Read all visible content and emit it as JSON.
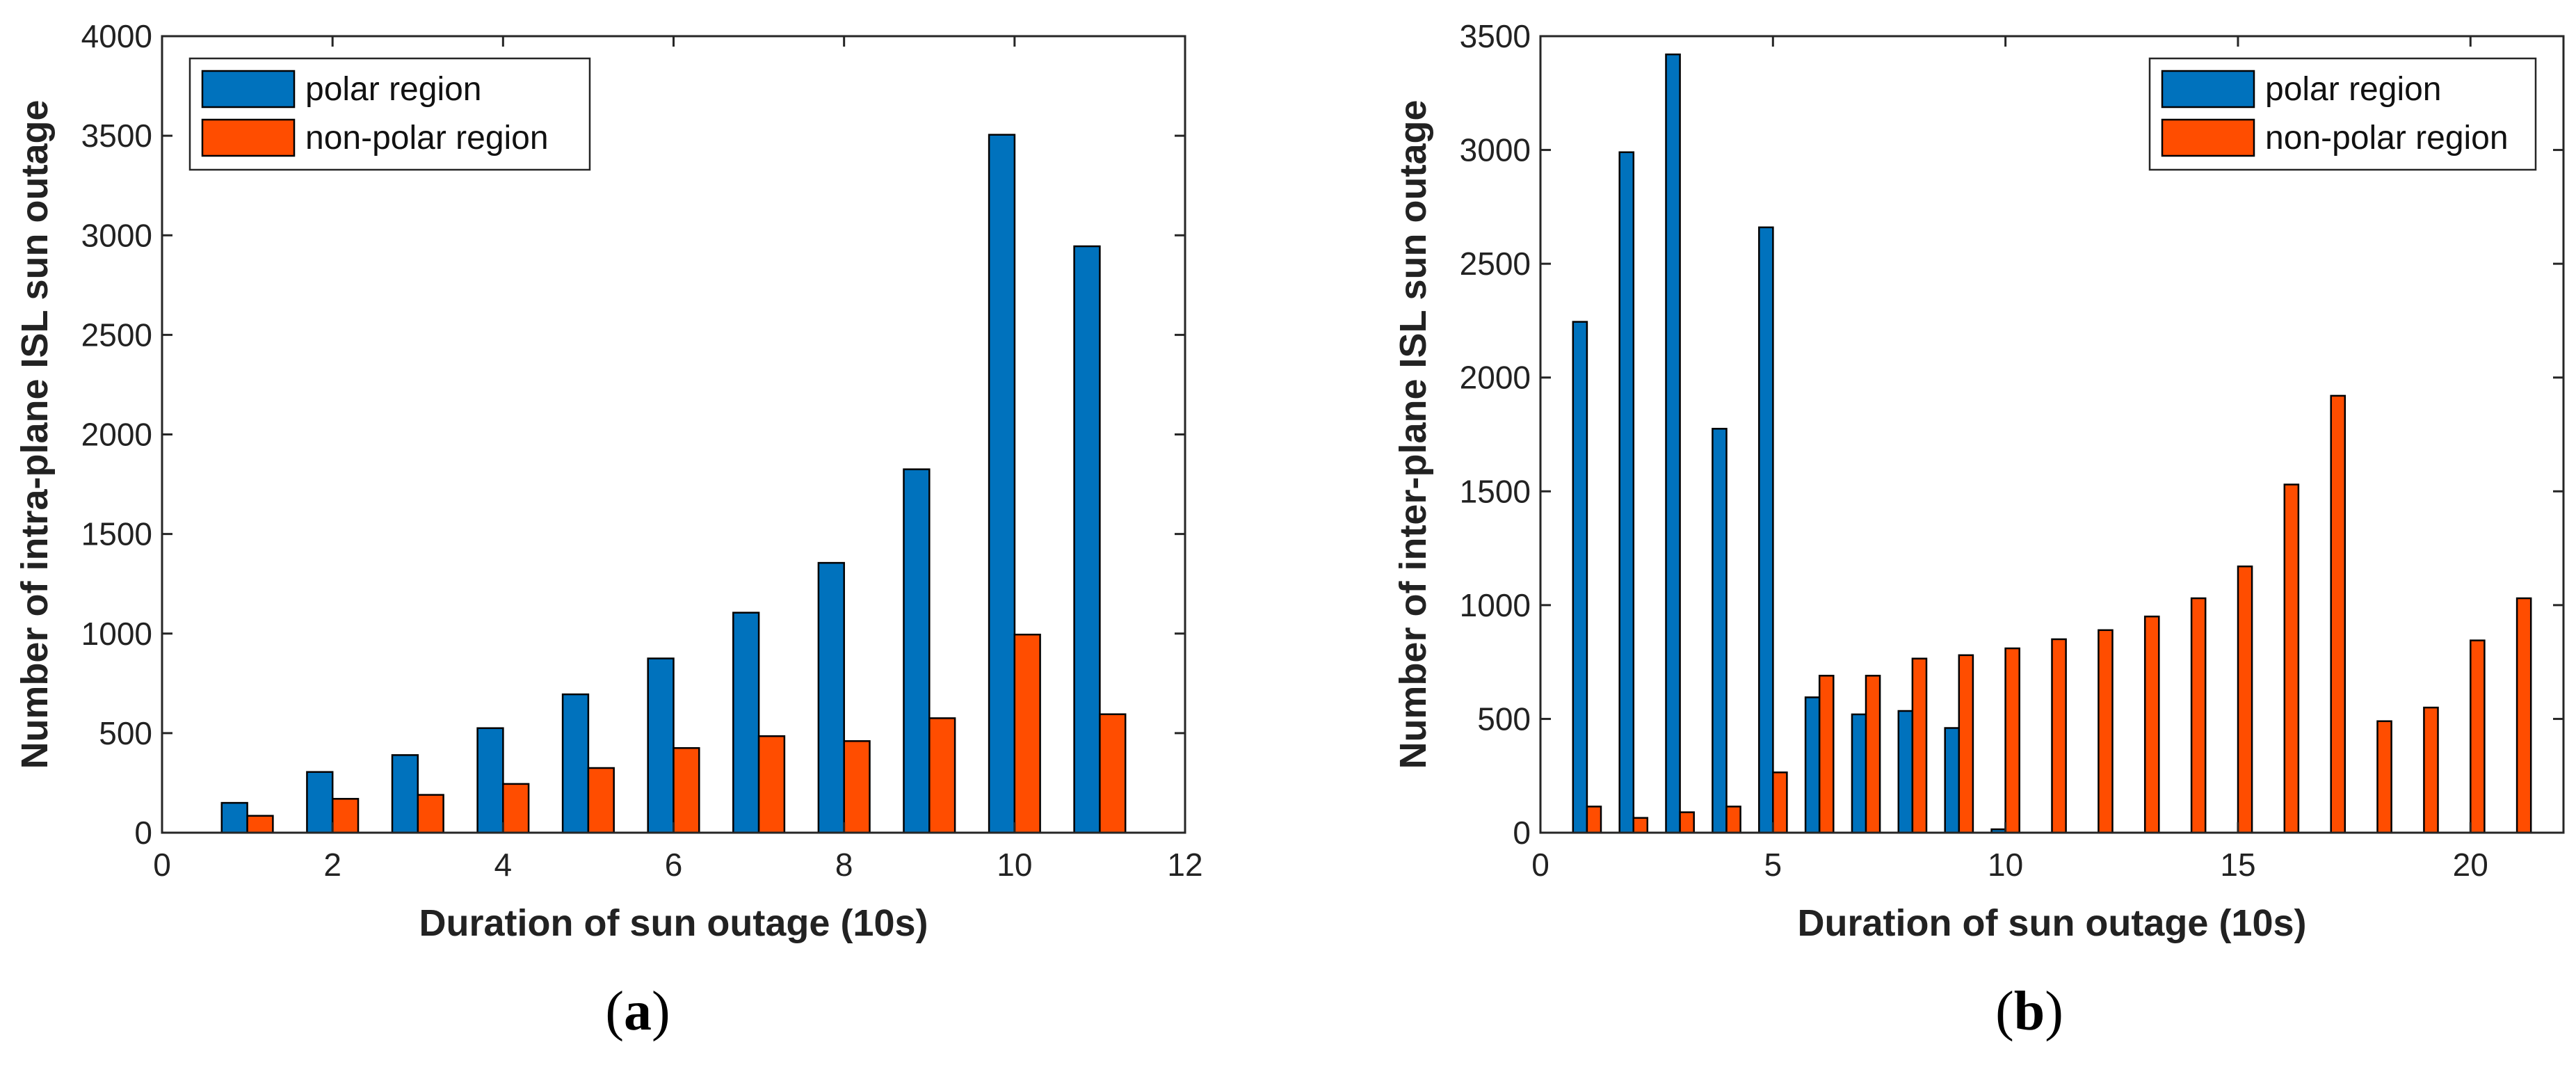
{
  "colors": {
    "polar": "#0072BD",
    "nonpolar": "#FF4D00",
    "axis": "#262626",
    "bar_edge": "#000000"
  },
  "chart_data": [
    {
      "type": "bar",
      "panel_label": "a",
      "xlabel": "Duration of sun outage (10s)",
      "ylabel": "Number of intra-plane ISL sun outage",
      "xlim": [
        0,
        12
      ],
      "ylim": [
        0,
        4000
      ],
      "xticks": [
        0,
        2,
        4,
        6,
        8,
        10,
        12
      ],
      "yticks": [
        0,
        500,
        1000,
        1500,
        2000,
        2500,
        3000,
        3500,
        4000
      ],
      "xtick_labels": [
        "0",
        "2",
        "4",
        "6",
        "8",
        "10",
        "12"
      ],
      "ytick_labels": [
        "0",
        "500",
        "1000",
        "1500",
        "2000",
        "2500",
        "3000",
        "3500",
        "4000"
      ],
      "legend": {
        "position": "top-left",
        "entries": [
          "polar region",
          "non-polar region"
        ]
      },
      "x": [
        1,
        2,
        3,
        4,
        5,
        6,
        7,
        8,
        9,
        10,
        11,
        12
      ],
      "series": [
        {
          "name": "polar region",
          "values": [
            150,
            305,
            390,
            525,
            695,
            875,
            1105,
            1355,
            1825,
            3505,
            2945,
            0
          ]
        },
        {
          "name": "non-polar region",
          "values": [
            85,
            170,
            190,
            245,
            325,
            425,
            485,
            460,
            575,
            995,
            595,
            0
          ]
        }
      ]
    },
    {
      "type": "bar",
      "panel_label": "b",
      "xlabel": "Duration of sun outage (10s)",
      "ylabel": "Number of inter-plane ISL sun outage",
      "xlim": [
        0,
        22
      ],
      "ylim": [
        0,
        3500
      ],
      "xticks": [
        0,
        5,
        10,
        15,
        20
      ],
      "yticks": [
        0,
        500,
        1000,
        1500,
        2000,
        2500,
        3000,
        3500
      ],
      "xtick_labels": [
        "0",
        "5",
        "10",
        "15",
        "20"
      ],
      "ytick_labels": [
        "0",
        "500",
        "1000",
        "1500",
        "2000",
        "2500",
        "3000",
        "3500"
      ],
      "legend": {
        "position": "top-right",
        "entries": [
          "polar region",
          "non-polar region"
        ]
      },
      "x": [
        1,
        2,
        3,
        4,
        5,
        6,
        7,
        8,
        9,
        10,
        11,
        12,
        13,
        14,
        15,
        16,
        17,
        18,
        19,
        20,
        21
      ],
      "series": [
        {
          "name": "polar region",
          "values": [
            2245,
            2990,
            3420,
            1775,
            2660,
            595,
            520,
            535,
            460,
            15,
            0,
            0,
            0,
            0,
            0,
            0,
            0,
            0,
            0,
            0,
            0
          ]
        },
        {
          "name": "non-polar region",
          "values": [
            115,
            65,
            90,
            115,
            265,
            690,
            690,
            765,
            780,
            810,
            850,
            890,
            950,
            1030,
            1170,
            1530,
            1920,
            490,
            550,
            845,
            1030
          ]
        }
      ]
    }
  ]
}
